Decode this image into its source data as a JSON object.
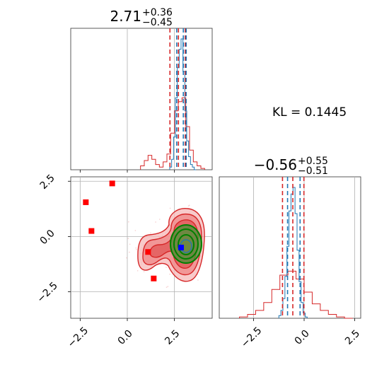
{
  "chart_data": {
    "type": "corner",
    "kl_label": "KL = 0.1445",
    "colors": {
      "red": "#d62728",
      "blue": "#1f77b4",
      "green": "#008000",
      "marker_red": "#ff0000",
      "marker_blue": "#0000ff"
    },
    "panels": {
      "hist1": {
        "title_value": "2.71",
        "title_plus": "+0.36",
        "title_minus": "−0.45",
        "xlim": [
          -3,
          4.5
        ],
        "red_quantiles": [
          2.26,
          2.71,
          3.07
        ],
        "blue_quantiles": [
          2.62,
          2.97,
          3.12
        ],
        "blue_hist": {
          "x": [
            2.3,
            2.4,
            2.5,
            2.6,
            2.7,
            2.8,
            2.9,
            3.0,
            3.1,
            3.2,
            3.3,
            3.4,
            3.5,
            3.6
          ],
          "y": [
            0.02,
            0.08,
            0.25,
            0.55,
            0.78,
            0.92,
            1.0,
            0.75,
            0.45,
            0.22,
            0.1,
            0.04,
            0.02,
            0.0
          ]
        },
        "red_hist": {
          "x": [
            0.8,
            1.0,
            1.2,
            1.4,
            1.6,
            1.8,
            2.0,
            2.2,
            2.4,
            2.6,
            2.8,
            3.0,
            3.2,
            3.4,
            3.6,
            3.8,
            4.0
          ],
          "y": [
            0.03,
            0.07,
            0.11,
            0.08,
            0.04,
            0.02,
            0.06,
            0.12,
            0.28,
            0.45,
            0.52,
            0.55,
            0.33,
            0.15,
            0.06,
            0.03,
            0.01
          ]
        }
      },
      "hist2": {
        "title_value": "−0.56",
        "title_plus": "+0.55",
        "title_minus": "−0.51",
        "xlim": [
          -4.2,
          2.8
        ],
        "xticks": [
          -2.5,
          0.0,
          2.5
        ],
        "xtick_labels": [
          "−2.5",
          "0.0",
          "2.5"
        ],
        "red_quantiles": [
          -1.07,
          -0.56,
          -0.01
        ],
        "blue_quantiles": [
          -0.82,
          -0.2
        ],
        "blue_hist": {
          "x": [
            -1.2,
            -1.1,
            -1.0,
            -0.9,
            -0.8,
            -0.7,
            -0.6,
            -0.5,
            -0.4,
            -0.3,
            -0.2,
            -0.1,
            0.0,
            0.1
          ],
          "y": [
            0.02,
            0.06,
            0.15,
            0.32,
            0.55,
            0.82,
            0.95,
            1.0,
            0.8,
            0.52,
            0.28,
            0.12,
            0.04,
            0.01
          ]
        },
        "red_hist": {
          "x": [
            -3.0,
            -2.6,
            -2.2,
            -1.8,
            -1.4,
            -1.0,
            -0.6,
            -0.2,
            0.2,
            0.6,
            1.0,
            1.4,
            1.8,
            2.2
          ],
          "y": [
            0.01,
            0.03,
            0.06,
            0.12,
            0.22,
            0.33,
            0.36,
            0.3,
            0.2,
            0.11,
            0.06,
            0.03,
            0.01,
            0.0
          ]
        }
      },
      "scatter": {
        "xlim": [
          -3,
          4.5
        ],
        "ylim": [
          -3.7,
          2.7
        ],
        "xticks": [
          -2.5,
          0.0,
          2.5
        ],
        "xtick_labels": [
          "−2.5",
          "0.0",
          "2.5"
        ],
        "yticks": [
          -2.5,
          0.0,
          2.5
        ],
        "ytick_labels": [
          "−2.5",
          "0.0",
          "2.5"
        ],
        "red_markers": [
          [
            -2.2,
            1.55
          ],
          [
            -1.9,
            0.25
          ],
          [
            -0.8,
            2.4
          ],
          [
            1.1,
            -0.7
          ],
          [
            1.4,
            -1.9
          ]
        ],
        "blue_marker": [
          2.85,
          -0.5
        ]
      }
    }
  }
}
